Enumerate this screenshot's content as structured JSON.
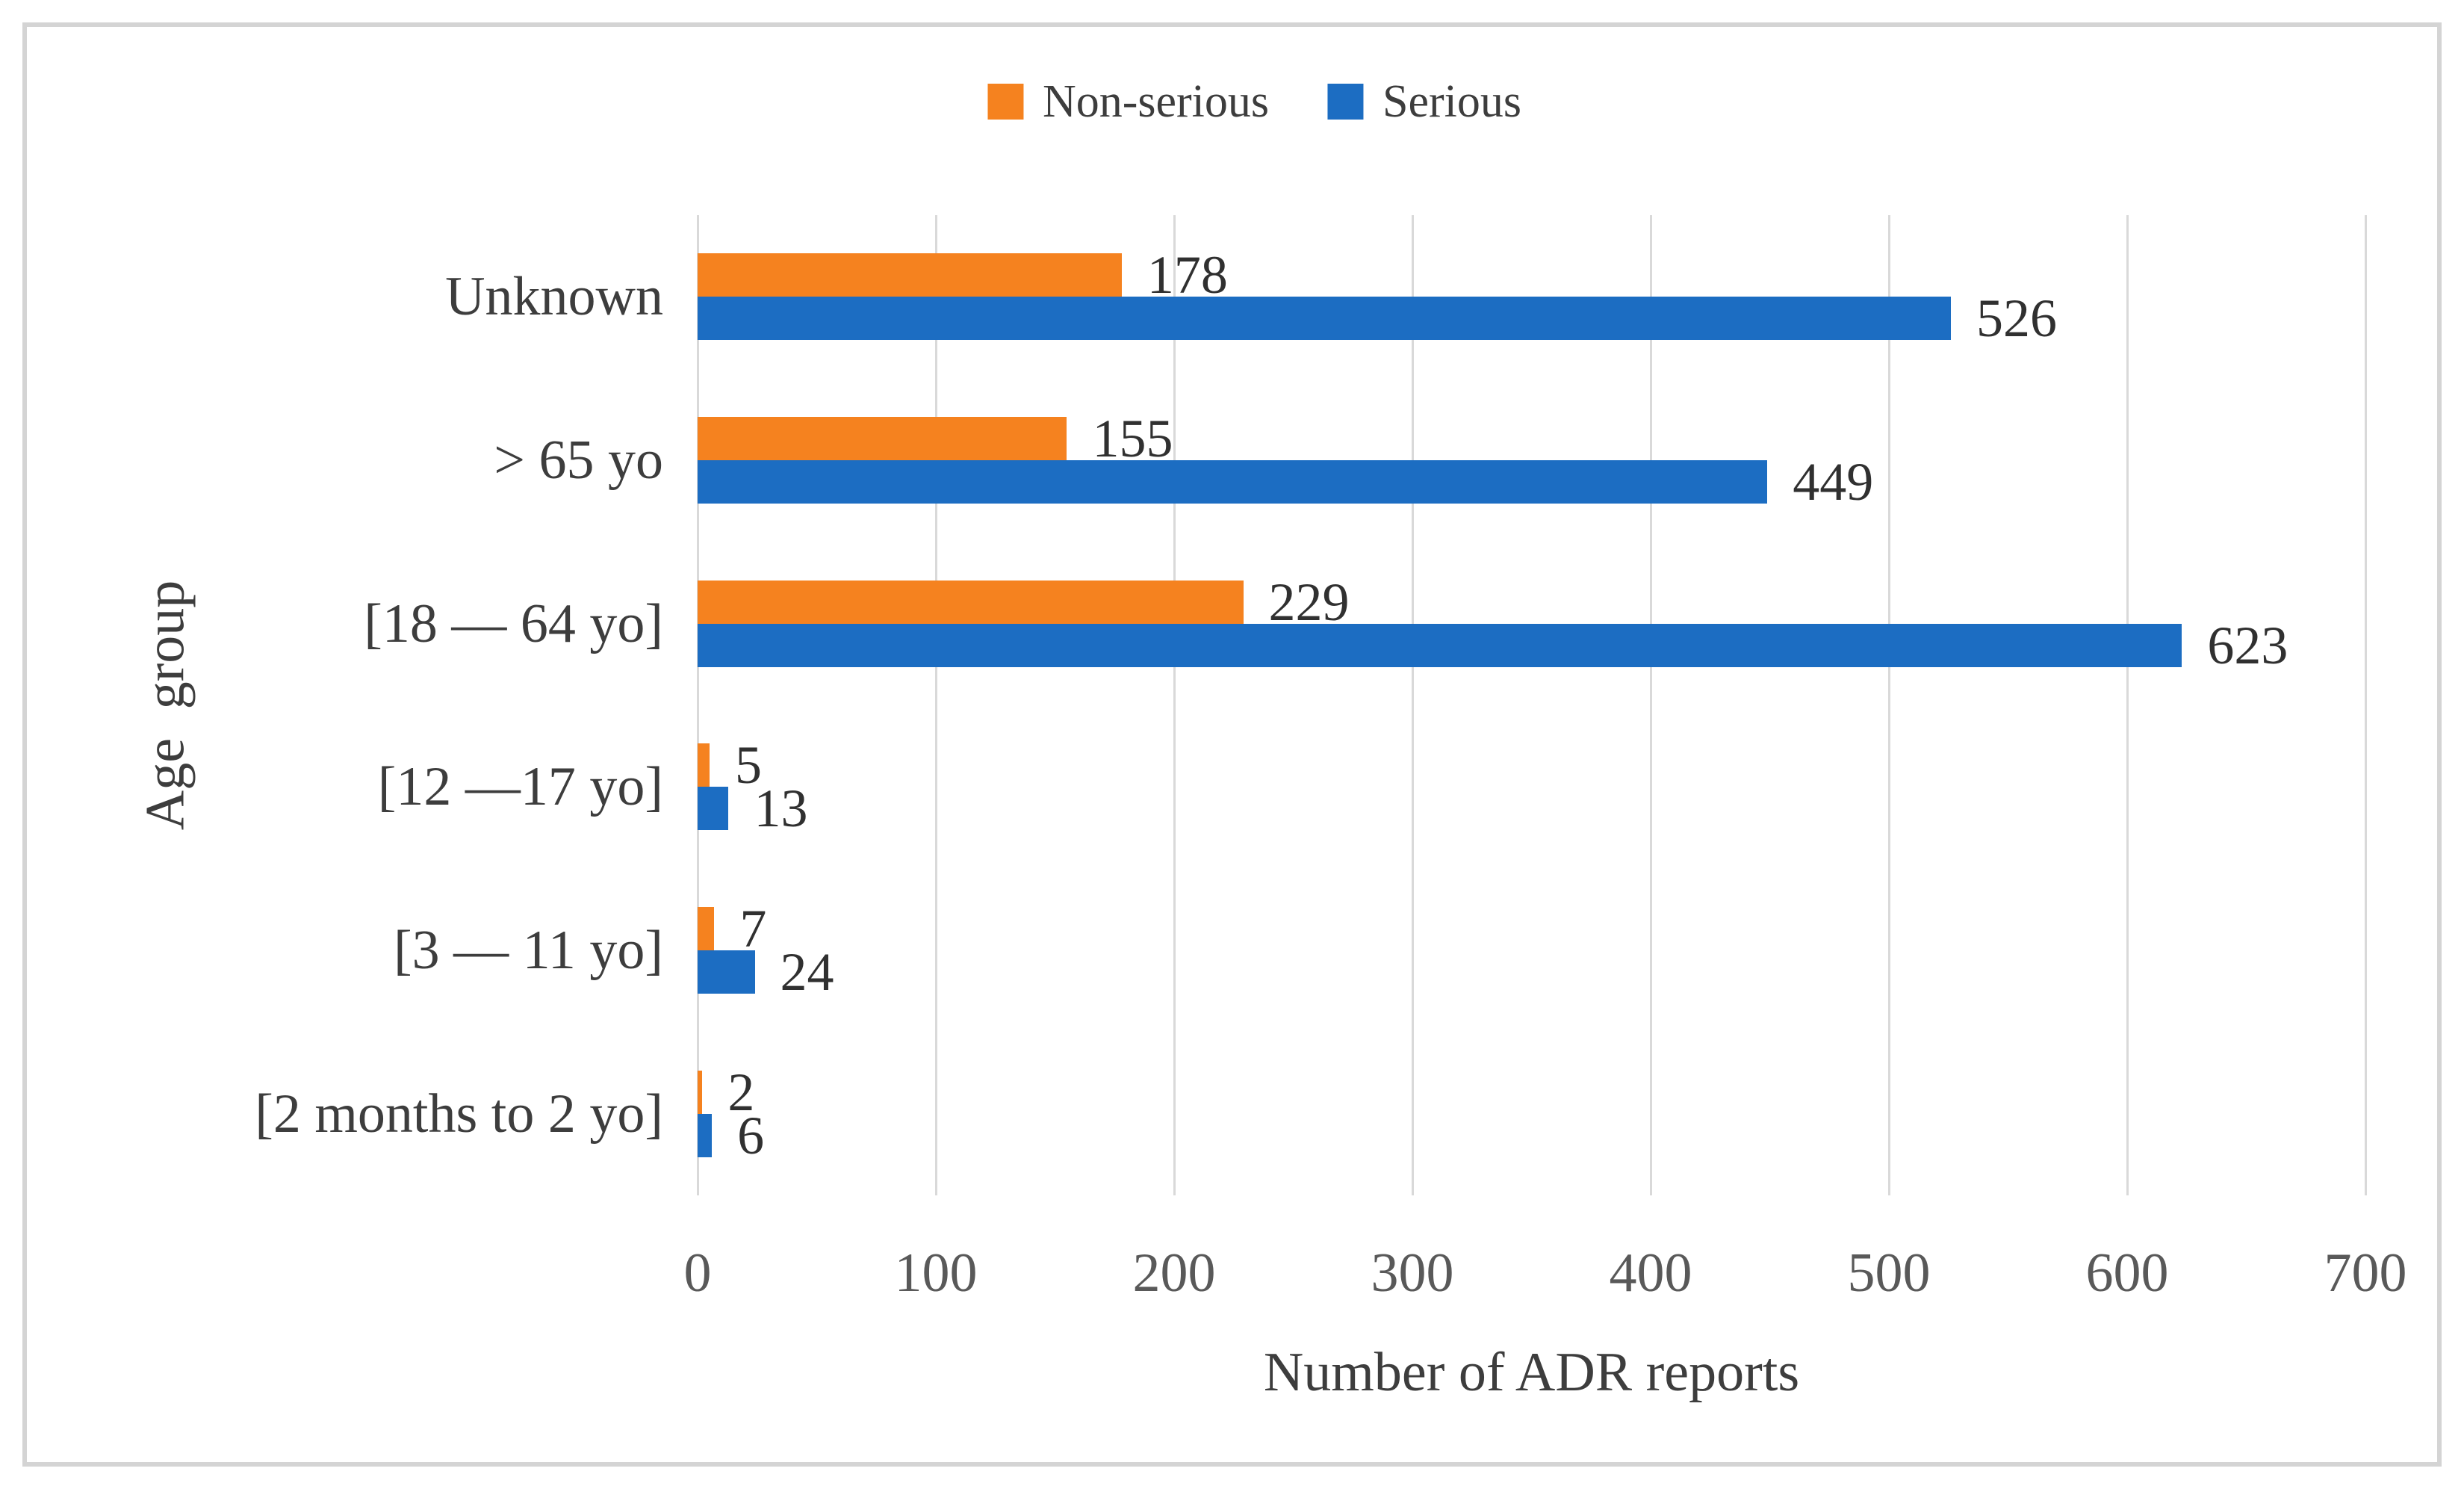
{
  "chart_data": {
    "type": "bar",
    "orientation": "horizontal",
    "title": "",
    "xlabel": "Number of ADR reports",
    "ylabel": "Age group",
    "categories": [
      "Unknown",
      "> 65 yo",
      "[18 — 64 yo]",
      "[12 —17 yo]",
      "[3 — 11 yo]",
      "[2 months to 2 yo]"
    ],
    "series": [
      {
        "name": "Non-serious",
        "color": "#F5821F",
        "values": [
          178,
          155,
          229,
          5,
          7,
          2
        ]
      },
      {
        "name": "Serious",
        "color": "#1C6DC2",
        "values": [
          526,
          449,
          623,
          13,
          24,
          6
        ]
      }
    ],
    "x_ticks": [
      0,
      100,
      200,
      300,
      400,
      500,
      600,
      700
    ],
    "xlim": [
      0,
      700
    ],
    "grid": "vertical-gridlines",
    "legend_position": "top-center",
    "data_labels": true
  },
  "legend": {
    "items": [
      {
        "label": "Non-serious",
        "color": "#F5821F"
      },
      {
        "label": "Serious",
        "color": "#1C6DC2"
      }
    ]
  },
  "colors": {
    "background": "#FFFFFF",
    "border": "#D4D4D4",
    "gridline": "#D9D9D9",
    "text": "#3D3D3D",
    "tick_text": "#595959",
    "data_label_text": "#303030"
  }
}
